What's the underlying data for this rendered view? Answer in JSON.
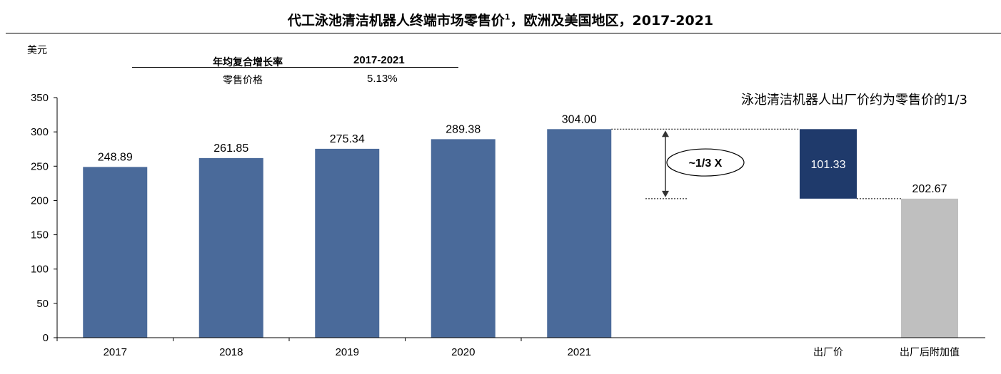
{
  "header": {
    "title": "代工泳池清洁机器人终端市场零售价",
    "title_sup": "1",
    "title_suffix": "，欧洲及美国地区，2017-2021"
  },
  "unit_label": "美元",
  "cagr_table": {
    "header_metric": "年均复合增长率",
    "header_period": "2017-2021",
    "row_metric": "零售价格",
    "row_value": "5.13%"
  },
  "note": "泳池清洁机器人出厂价约为零售价的1/3",
  "annotation": "~1/3 X",
  "colors": {
    "bar": "#4A6A9A",
    "factory": "#1F3A6B",
    "addon": "#BFBFBF"
  },
  "chart_data": {
    "type": "bar",
    "ylim": [
      0,
      350
    ],
    "yticks": [
      0,
      50,
      100,
      150,
      200,
      250,
      300,
      350
    ],
    "categories": [
      "2017",
      "2018",
      "2019",
      "2020",
      "2021"
    ],
    "values": [
      248.89,
      261.85,
      275.34,
      289.38,
      304.0
    ],
    "value_labels": [
      "248.89",
      "261.85",
      "275.34",
      "289.38",
      "304.00"
    ],
    "waterfall": [
      {
        "category": "出厂价",
        "bottom": 202.67,
        "top": 304.0,
        "label": "101.33"
      },
      {
        "category": "出厂后附加值",
        "bottom": 0,
        "top": 202.67,
        "label": "202.67"
      }
    ]
  }
}
